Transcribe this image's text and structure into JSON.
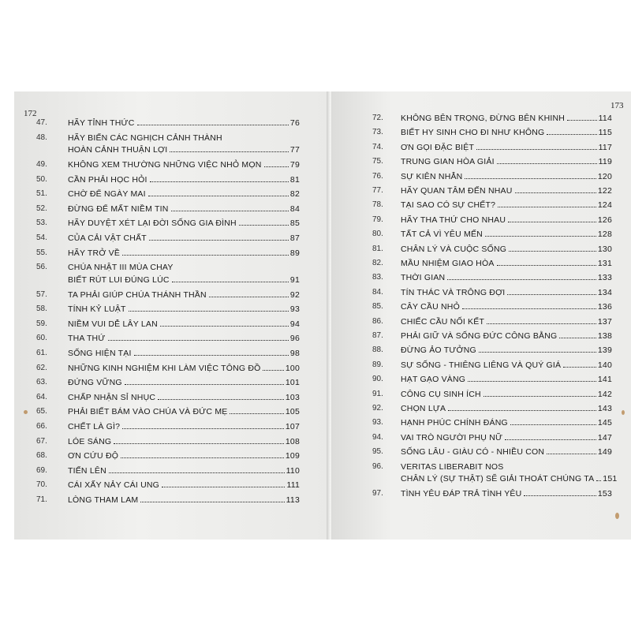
{
  "left_page": {
    "page_number": "172",
    "entries": [
      {
        "number": "47.",
        "title": [
          "HÃY TỈNH THỨC"
        ],
        "page": 76
      },
      {
        "number": "48.",
        "title": [
          "HÃY BIẾN CÁC NGHỊCH CẢNH THÀNH",
          "HOÀN CẢNH THUẬN LỢI"
        ],
        "page": 77
      },
      {
        "number": "49.",
        "title": [
          "KHÔNG XEM THƯỜNG NHỮNG VIỆC NHỎ MỌN"
        ],
        "page": 79
      },
      {
        "number": "50.",
        "title": [
          "CẦN PHẢI HỌC HỎI"
        ],
        "page": 81
      },
      {
        "number": "51.",
        "title": [
          "CHỜ ĐỂ NGÀY MAI"
        ],
        "page": 82
      },
      {
        "number": "52.",
        "title": [
          "ĐỪNG ĐỂ MẤT NIỀM TIN"
        ],
        "page": 84
      },
      {
        "number": "53.",
        "title": [
          "HÃY DUYỆT XÉT LẠI ĐỜI SỐNG GIA ĐÌNH"
        ],
        "page": 85
      },
      {
        "number": "54.",
        "title": [
          "CỦA CẢI VẬT CHẤT"
        ],
        "page": 87
      },
      {
        "number": "55.",
        "title": [
          "HÃY TRỞ VỀ"
        ],
        "page": 89
      },
      {
        "number": "56.",
        "title": [
          "CHÚA NHẬT III MÙA CHAY",
          "BIẾT RÚT LUI ĐÚNG LÚC"
        ],
        "page": 91
      },
      {
        "number": "57.",
        "title": [
          "TA PHẢI GIÚP CHÚA THÁNH THẦN"
        ],
        "page": 92
      },
      {
        "number": "58.",
        "title": [
          "TÍNH KỶ LUẬT"
        ],
        "page": 93
      },
      {
        "number": "59.",
        "title": [
          "NIỀM VUI DỄ LÂY LAN"
        ],
        "page": 94
      },
      {
        "number": "60.",
        "title": [
          "THA THỨ"
        ],
        "page": 96
      },
      {
        "number": "61.",
        "title": [
          "SỐNG HIỆN TẠI"
        ],
        "page": 98
      },
      {
        "number": "62.",
        "title": [
          "NHỮNG KINH NGHIỆM KHI LÀM VIỆC TÔNG ĐỒ"
        ],
        "page": 100
      },
      {
        "number": "63.",
        "title": [
          "ĐỨNG VỮNG"
        ],
        "page": 101
      },
      {
        "number": "64.",
        "title": [
          "CHẤP NHẬN SỈ NHỤC"
        ],
        "page": 103
      },
      {
        "number": "65.",
        "title": [
          "PHẢI BIẾT BÁM VÀO CHÚA VÀ ĐỨC MẸ"
        ],
        "page": 105
      },
      {
        "number": "66.",
        "title": [
          "CHẾT LÀ GÌ?"
        ],
        "page": 107
      },
      {
        "number": "67.",
        "title": [
          "LÓE SÁNG"
        ],
        "page": 108
      },
      {
        "number": "68.",
        "title": [
          "ƠN CỨU ĐỘ"
        ],
        "page": 109
      },
      {
        "number": "69.",
        "title": [
          "TIẾN LÊN"
        ],
        "page": 110
      },
      {
        "number": "70.",
        "title": [
          "CÁI XẤY NẢY CÁI UNG"
        ],
        "page": 111
      },
      {
        "number": "71.",
        "title": [
          "LÒNG THAM LAM"
        ],
        "page": 113
      }
    ]
  },
  "right_page": {
    "page_number": "173",
    "entries": [
      {
        "number": "72.",
        "title": [
          "KHÔNG BÊN TRỌNG, ĐỪNG BÊN KHINH"
        ],
        "page": 114
      },
      {
        "number": "73.",
        "title": [
          "BIẾT HY SINH CHO ĐI NHƯ KHÔNG"
        ],
        "page": 115
      },
      {
        "number": "74.",
        "title": [
          "ƠN GỌI ĐẶC BIỆT"
        ],
        "page": 117
      },
      {
        "number": "75.",
        "title": [
          "TRUNG GIAN HÒA GIẢI"
        ],
        "page": 119
      },
      {
        "number": "76.",
        "title": [
          "SỰ KIÊN NHẪN"
        ],
        "page": 120
      },
      {
        "number": "77.",
        "title": [
          "HÃY QUAN TÂM ĐẾN NHAU"
        ],
        "page": 122
      },
      {
        "number": "78.",
        "title": [
          "TẠI SAO CÓ SỰ CHẾT?"
        ],
        "page": 124
      },
      {
        "number": "79.",
        "title": [
          "HÃY THA THỨ CHO NHAU"
        ],
        "page": 126
      },
      {
        "number": "80.",
        "title": [
          "TẤT CẢ VÌ YÊU MẾN"
        ],
        "page": 128
      },
      {
        "number": "81.",
        "title": [
          "CHÂN LÝ VÀ CUỘC SỐNG"
        ],
        "page": 130
      },
      {
        "number": "82.",
        "title": [
          "MẦU NHIỆM GIAO HÒA"
        ],
        "page": 131
      },
      {
        "number": "83.",
        "title": [
          "THỜI GIAN"
        ],
        "page": 133
      },
      {
        "number": "84.",
        "title": [
          "TÍN THÁC VÀ TRÔNG ĐỢI"
        ],
        "page": 134
      },
      {
        "number": "85.",
        "title": [
          "CÂY CẦU NHỎ"
        ],
        "page": 136
      },
      {
        "number": "86.",
        "title": [
          "CHIẾC CẦU NỐI KẾT"
        ],
        "page": 137
      },
      {
        "number": "87.",
        "title": [
          "PHẢI GIỮ VÀ SỐNG ĐỨC CÔNG BẰNG"
        ],
        "page": 138
      },
      {
        "number": "88.",
        "title": [
          "ĐỪNG ẢO TƯỞNG"
        ],
        "page": 139
      },
      {
        "number": "89.",
        "title": [
          "SỰ SỐNG - THIÊNG LIÊNG VÀ QUÝ GIÁ"
        ],
        "page": 140
      },
      {
        "number": "90.",
        "title": [
          "HẠT GẠO VÀNG"
        ],
        "page": 141
      },
      {
        "number": "91.",
        "title": [
          "CÔNG CỤ SINH ÍCH"
        ],
        "page": 142
      },
      {
        "number": "92.",
        "title": [
          "CHỌN LỰA"
        ],
        "page": 143
      },
      {
        "number": "93.",
        "title": [
          "HẠNH PHÚC CHÍNH ĐÁNG"
        ],
        "page": 145
      },
      {
        "number": "94.",
        "title": [
          "VAI TRÒ NGƯỜI PHỤ NỮ"
        ],
        "page": 147
      },
      {
        "number": "95.",
        "title": [
          "SỐNG LÂU - GIÀU CÓ - NHIỀU CON"
        ],
        "page": 149
      },
      {
        "number": "96.",
        "title": [
          "VERITAS LIBERABIT NOS",
          "CHÂN LÝ (SỰ THẬT) SẼ GIẢI THOÁT CHÚNG TA"
        ],
        "page": 151
      },
      {
        "number": "97.",
        "title": [
          "TÌNH YÊU ĐÁP TRẢ TÌNH YÊU"
        ],
        "page": 153
      }
    ]
  }
}
